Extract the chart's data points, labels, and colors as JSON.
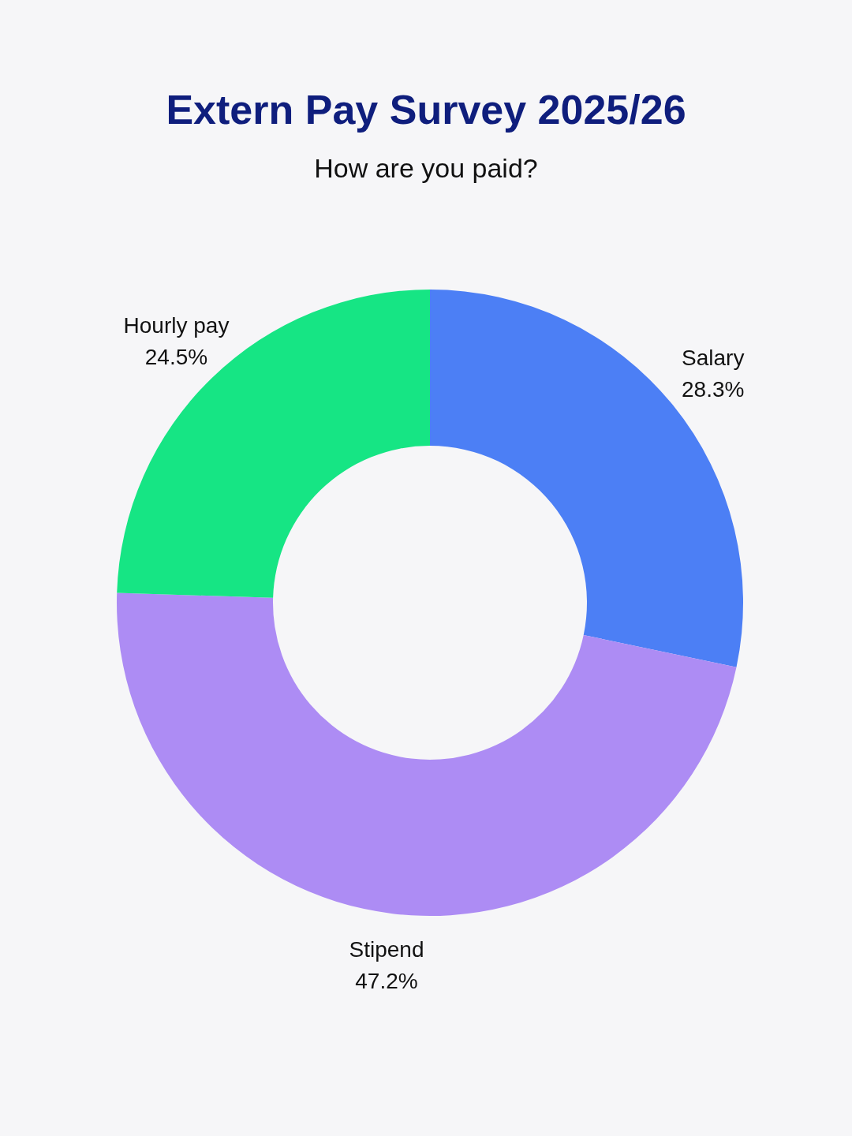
{
  "chart_data": {
    "type": "donut",
    "title": "Extern Pay Survey 2025/26",
    "subtitle": "How are you paid?",
    "categories": [
      "Salary",
      "Stipend",
      "Hourly pay"
    ],
    "values": [
      28.3,
      47.2,
      24.5
    ],
    "colors": [
      "#4c7ff5",
      "#ad8cf4",
      "#16e584"
    ],
    "value_labels": [
      "28.3%",
      "47.2%",
      "24.5%"
    ]
  }
}
